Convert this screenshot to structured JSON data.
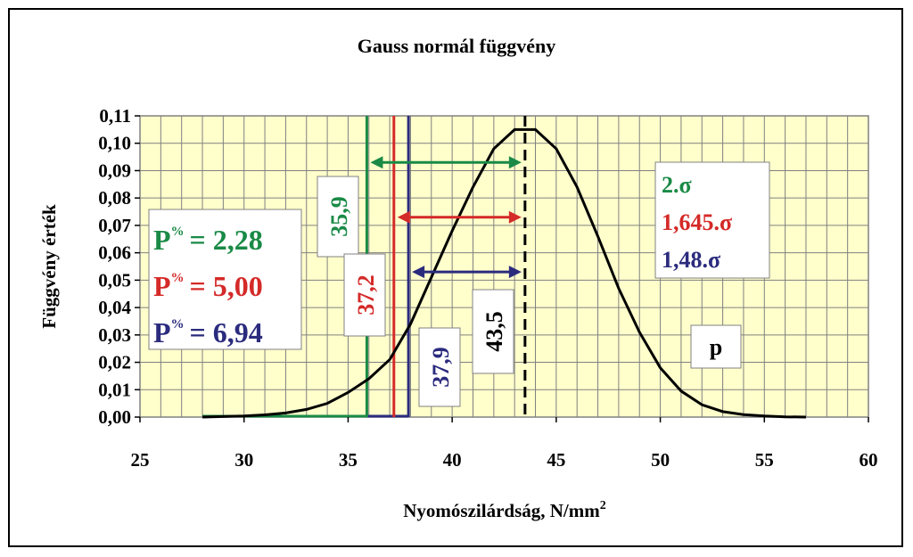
{
  "chart_data": {
    "type": "line",
    "title": "Gauss normál függvény",
    "xlabel": "Nyomószilárdság, N/mm",
    "xlabel_superscript": "2",
    "ylabel": "Függvény érték",
    "xlim": [
      25,
      60
    ],
    "ylim": [
      0,
      0.11
    ],
    "x_ticks": [
      "25",
      "30",
      "35",
      "40",
      "45",
      "50",
      "55",
      "60"
    ],
    "y_ticks": [
      "0,00",
      "0,01",
      "0,02",
      "0,03",
      "0,04",
      "0,05",
      "0,06",
      "0,07",
      "0,08",
      "0,09",
      "0,10",
      "0,11"
    ],
    "grid": true,
    "plot_background": "#ffffcc",
    "series": [
      {
        "name": "p",
        "color": "#000000",
        "x": [
          28,
          29,
          30,
          31,
          32,
          33,
          34,
          35,
          36,
          37,
          38,
          39,
          40,
          41,
          42,
          43,
          44,
          45,
          46,
          47,
          48,
          49,
          50,
          51,
          52,
          53,
          54,
          55,
          56,
          57
        ],
        "y": [
          0.0,
          0.0002,
          0.0004,
          0.0008,
          0.0015,
          0.0028,
          0.005,
          0.009,
          0.014,
          0.021,
          0.034,
          0.051,
          0.068,
          0.084,
          0.098,
          0.105,
          0.105,
          0.098,
          0.084,
          0.066,
          0.047,
          0.031,
          0.018,
          0.0095,
          0.0045,
          0.002,
          0.0009,
          0.0004,
          0.0001,
          0.0
        ]
      }
    ],
    "vertical_lines": [
      {
        "x": 35.9,
        "label": "35,9",
        "color": "#1a8a46",
        "style": "solid"
      },
      {
        "x": 37.2,
        "label": "37,2",
        "color": "#d42a28",
        "style": "solid"
      },
      {
        "x": 37.9,
        "label": "37,9",
        "color": "#2b2b7e",
        "style": "solid"
      },
      {
        "x": 43.5,
        "label": "43,5",
        "color": "#000000",
        "style": "dashed"
      }
    ],
    "arrows": [
      {
        "x1": 35.9,
        "x2": 43.5,
        "y": 0.093,
        "color": "#1a8a46"
      },
      {
        "x1": 37.2,
        "x2": 43.5,
        "y": 0.073,
        "color": "#d42a28"
      },
      {
        "x1": 37.9,
        "x2": 43.5,
        "y": 0.053,
        "color": "#2b2b7e"
      }
    ],
    "baseline_segments": [
      {
        "x1": 28,
        "x2": 35.9,
        "color": "#1a8a46"
      },
      {
        "x1": 35.9,
        "x2": 37.9,
        "color": "#2b2b7e"
      }
    ],
    "probability_box": {
      "items": [
        {
          "text": "P",
          "sup": "%",
          "value": "= 2,28",
          "color": "#1a8a46"
        },
        {
          "text": "P",
          "sup": "%",
          "value": "= 5,00",
          "color": "#d42a28"
        },
        {
          "text": "P",
          "sup": "%",
          "value": "= 6,94",
          "color": "#2b2b7e"
        }
      ]
    },
    "sigma_box": {
      "items": [
        {
          "text": "2.σ",
          "color": "#1a8a46"
        },
        {
          "text": "1,645.σ",
          "color": "#d42a28"
        },
        {
          "text": "1,48.σ",
          "color": "#2b2b7e"
        }
      ]
    },
    "series_label": "p"
  }
}
